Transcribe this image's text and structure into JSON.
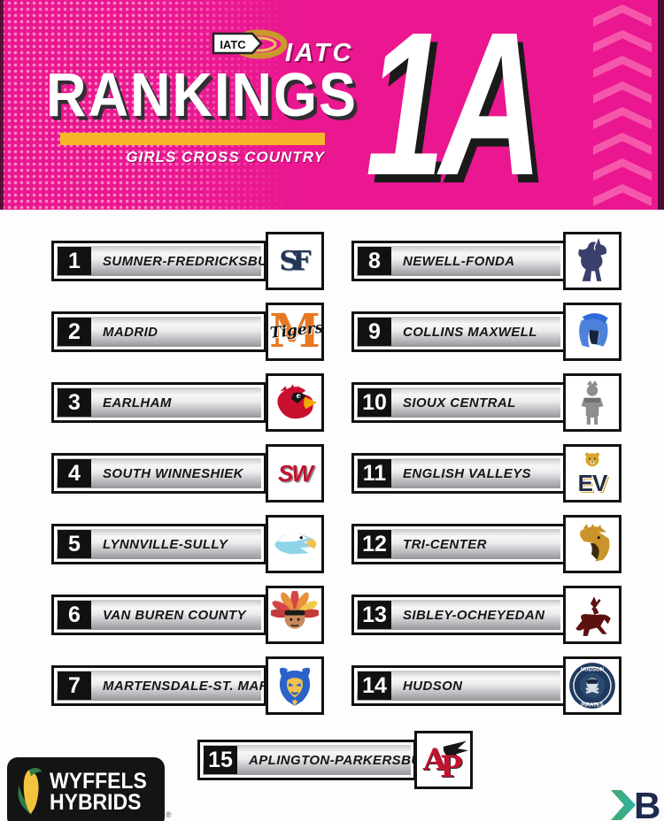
{
  "header": {
    "org_badge": "IATC",
    "org_label": "IATC",
    "title": "RANKINGS",
    "subtitle": "GIRLS CROSS COUNTRY",
    "class_label": "1A",
    "colors": {
      "background": "#EA1790",
      "accent_bar": "#F7B629",
      "pattern_pink": "#F65FAE"
    }
  },
  "rankings": {
    "teams": [
      {
        "rank": "1",
        "name": "SUMNER-FREDRICKSBURG",
        "logo": {
          "icon": "sf-monogram-icon",
          "kind": "sf",
          "primary": "#243655"
        }
      },
      {
        "rank": "2",
        "name": "MADRID",
        "logo": {
          "icon": "madrid-tigers-icon",
          "kind": "madrid",
          "primary": "#E87722",
          "text": "M",
          "script": "Tigers"
        }
      },
      {
        "rank": "3",
        "name": "EARLHAM",
        "logo": {
          "icon": "cardinal-head-icon",
          "kind": "cardinal",
          "primary": "#C8102E",
          "accent": "#F2A900"
        }
      },
      {
        "rank": "4",
        "name": "SOUTH WINNESHIEK",
        "logo": {
          "icon": "sw-monogram-icon",
          "kind": "sw",
          "primary": "#C41230",
          "text": "SW"
        }
      },
      {
        "rank": "5",
        "name": "LYNNVILLE-SULLY",
        "logo": {
          "icon": "eagle-head-icon",
          "kind": "eagle",
          "primary": "#8FD4E8",
          "accent": "#F2C24E"
        }
      },
      {
        "rank": "6",
        "name": "VAN BUREN COUNTY",
        "logo": {
          "icon": "chief-headdress-icon",
          "kind": "chief",
          "primary": "#C98A5B"
        }
      },
      {
        "rank": "7",
        "name": "MARTENSDALE-ST. MARYS",
        "logo": {
          "icon": "blue-devil-icon",
          "kind": "devil",
          "primary": "#2B62C9",
          "accent": "#F2C24E"
        }
      },
      {
        "rank": "8",
        "name": "NEWELL-FONDA",
        "logo": {
          "icon": "mustang-icon",
          "kind": "mustang",
          "primary": "#3A3F6B"
        }
      },
      {
        "rank": "9",
        "name": "COLLINS MAXWELL",
        "logo": {
          "icon": "spartan-helmet-icon",
          "kind": "spartan",
          "primary": "#2E6BD6"
        }
      },
      {
        "rank": "10",
        "name": "SIOUX CENTRAL",
        "logo": {
          "icon": "warrior-icon",
          "kind": "warrior",
          "primary": "#8E8E8E"
        }
      },
      {
        "rank": "11",
        "name": "ENGLISH VALLEYS",
        "logo": {
          "icon": "ev-bear-icon",
          "kind": "ev",
          "primary": "#1F2A44",
          "accent": "#D9A62E",
          "text": "EV"
        }
      },
      {
        "rank": "12",
        "name": "TRI-CENTER",
        "logo": {
          "icon": "trojan-head-icon",
          "kind": "trojan",
          "primary": "#C9942A"
        }
      },
      {
        "rank": "13",
        "name": "SIBLEY-OCHEYEDAN",
        "logo": {
          "icon": "horse-rider-icon",
          "kind": "rider",
          "primary": "#5C1010"
        }
      },
      {
        "rank": "14",
        "name": "HUDSON",
        "logo": {
          "icon": "pirates-badge-icon",
          "kind": "hudson",
          "primary": "#1F3A5F",
          "label1": "HUDSON",
          "label2": "PIRATES"
        }
      },
      {
        "rank": "15",
        "name": "APLINGTON-PARKERSBURG",
        "logo": {
          "icon": "ap-falcon-icon",
          "kind": "ap",
          "primary": "#C41230",
          "text1": "A",
          "text2": "P"
        }
      }
    ]
  },
  "sponsors": {
    "wyffels": {
      "line1": "WYFFELS",
      "line2": "HYBRIDS",
      "reg": "®",
      "icon": "corn-icon"
    },
    "bound": {
      "icon": "bound-b-icon",
      "letter": "B"
    }
  }
}
